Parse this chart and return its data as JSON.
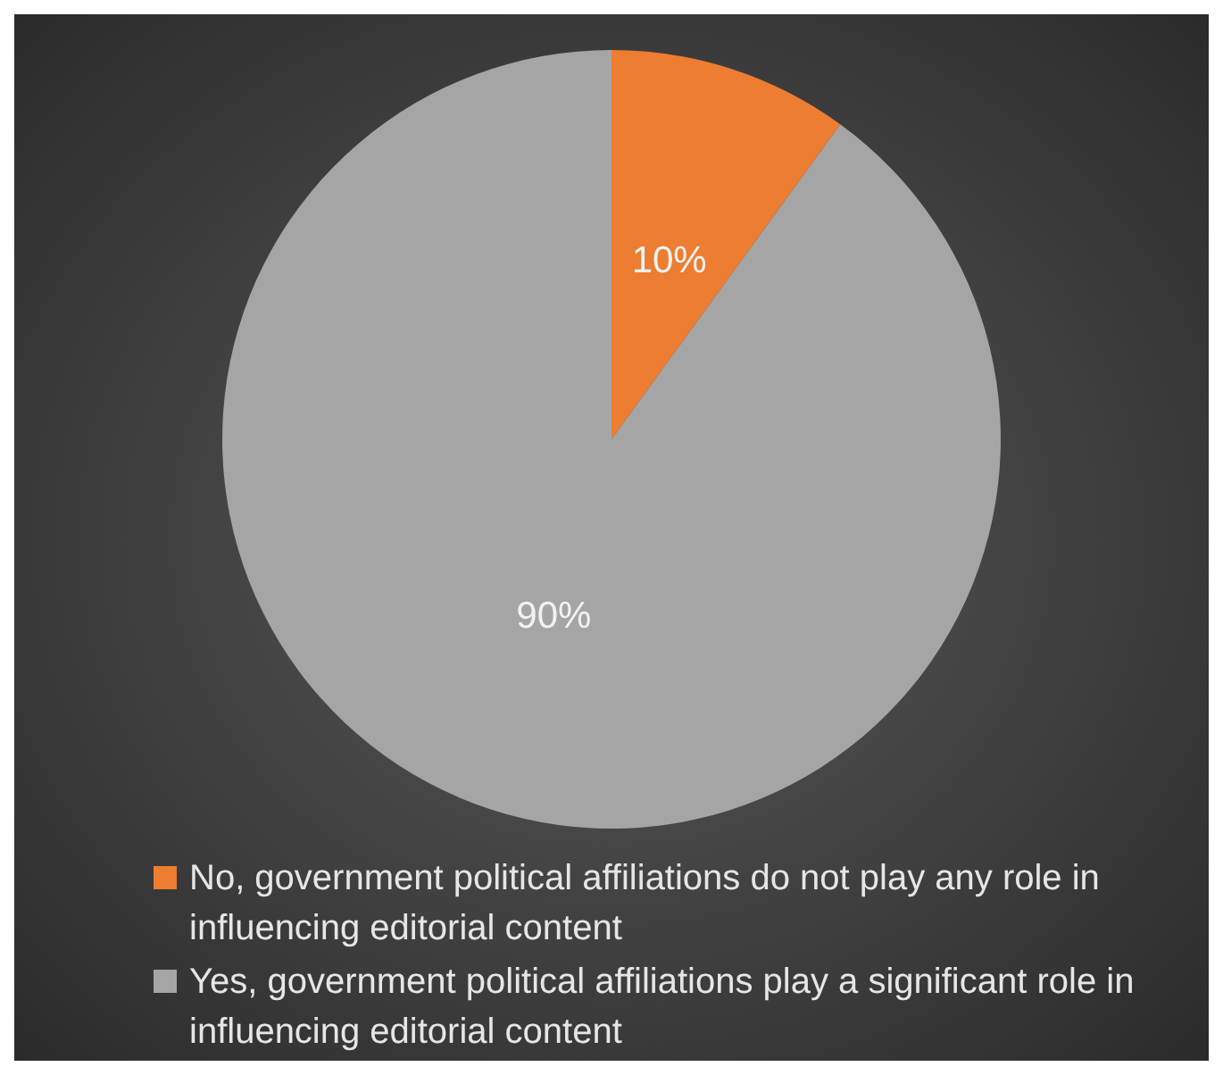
{
  "chart_data": {
    "type": "pie",
    "categories": [
      "No, government political affiliations do not play any role in influencing editorial content",
      "Yes, government political affiliations play a significant role in influencing editorial content"
    ],
    "values": [
      10,
      90
    ],
    "colors": [
      "#ed7d31",
      "#a5a5a5"
    ],
    "value_labels": [
      "10%",
      "90%"
    ],
    "legend": "bottom"
  }
}
